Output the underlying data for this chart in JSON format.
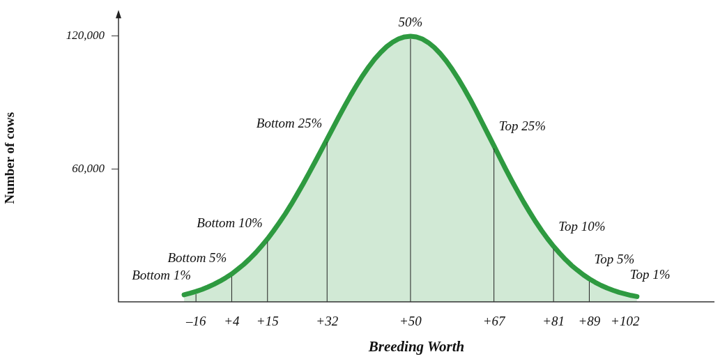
{
  "chart_data": {
    "type": "area",
    "xlabel": "Breeding Worth",
    "ylabel": "Number of cows",
    "categories": [
      null,
      null,
      null,
      null,
      null,
      null,
      null,
      null,
      null,
      null,
      null,
      null,
      null,
      "–16",
      null,
      null,
      null,
      null,
      null,
      "+4",
      null,
      null,
      null,
      null,
      null,
      "+15",
      null,
      null,
      null,
      null,
      null,
      null,
      null,
      null,
      null,
      "+32",
      null,
      null,
      null,
      null,
      null,
      null,
      null,
      null,
      null,
      null,
      null,
      null,
      null,
      "+50",
      null,
      null,
      null,
      null,
      null,
      null,
      null,
      null,
      null,
      null,
      null,
      null,
      null,
      "+67",
      null,
      null,
      null,
      null,
      null,
      null,
      null,
      null,
      null,
      "+81",
      null,
      null,
      null,
      null,
      null,
      "+89",
      null,
      null,
      null,
      null,
      null,
      "+102",
      null,
      null,
      null,
      null,
      null,
      null,
      null,
      null,
      null,
      null,
      null,
      null,
      null,
      null,
      null
    ],
    "series": [
      {
        "color": "#2e9a40",
        "values": [
          null,
          null,
          null,
          null,
          null,
          null,
          null,
          null,
          null,
          null,
          null,
          3200,
          3900,
          4700,
          5600,
          6700,
          7900,
          9300,
          10900,
          12600,
          14700,
          16900,
          19400,
          22100,
          25200,
          28400,
          32000,
          35800,
          39800,
          44100,
          48700,
          53400,
          58300,
          63300,
          68400,
          73500,
          78600,
          83700,
          88700,
          93500,
          98000,
          102300,
          106200,
          109700,
          112700,
          115300,
          117300,
          118800,
          119700,
          120000,
          119700,
          118700,
          117100,
          114900,
          112100,
          108800,
          105000,
          100800,
          96300,
          91500,
          86400,
          81100,
          75800,
          70500,
          65100,
          59800,
          54700,
          49800,
          45000,
          40500,
          36200,
          32200,
          28500,
          25100,
          22000,
          19100,
          16500,
          14300,
          12200,
          10400,
          8800,
          7400,
          6200,
          5200,
          4300,
          3600,
          2900,
          2400,
          null,
          null,
          null,
          null,
          null,
          null,
          null,
          null,
          null,
          null,
          null,
          null,
          null
        ]
      }
    ],
    "ylim": [
      0,
      130000
    ],
    "yticks": [
      {
        "value": 60000,
        "label": "60,000"
      },
      {
        "value": 120000,
        "label": "120,000"
      }
    ],
    "grid": false,
    "legend": false,
    "marker": "none",
    "line_style": "solid",
    "annotations": [
      {
        "text": "Bottom 1%",
        "x": "–16",
        "y": 4700
      },
      {
        "text": "Bottom 5%",
        "x": "+4",
        "y": 12600
      },
      {
        "text": "Bottom 10%",
        "x": "+15",
        "y": 28400
      },
      {
        "text": "Bottom 25%",
        "x": "+32",
        "y": 73500
      },
      {
        "text": "50%",
        "x": "+50",
        "y": 120000
      },
      {
        "text": "Top 25%",
        "x": "+67",
        "y": 70500
      },
      {
        "text": "Top 10%",
        "x": "+81",
        "y": 25100
      },
      {
        "text": "Top 5%",
        "x": "+89",
        "y": 10400
      },
      {
        "text": "Top 1%",
        "x": "+102",
        "y": 3600
      }
    ]
  }
}
